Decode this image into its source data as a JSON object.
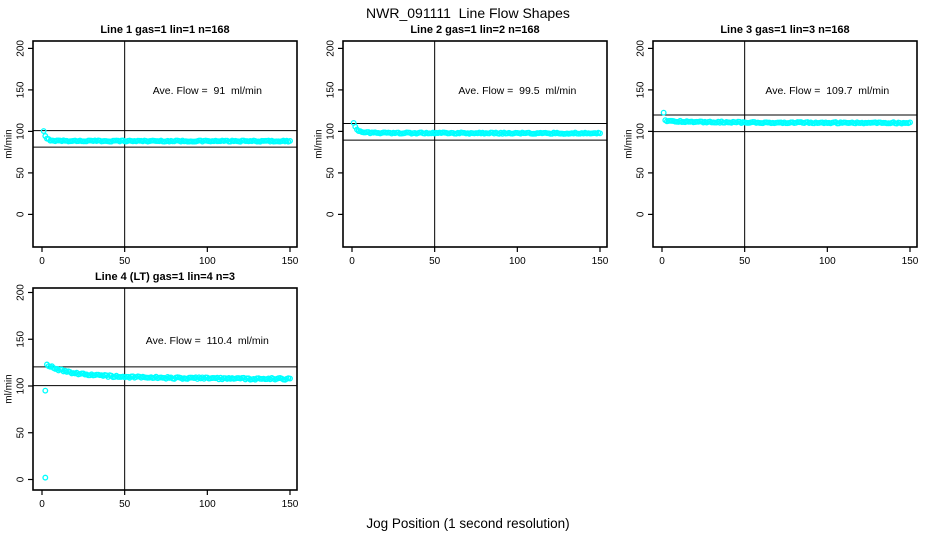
{
  "figure_title": "NWR_091111  Line Flow Shapes",
  "x_axis_label": "Jog Position (1 second resolution)",
  "point_color": "#00ffff",
  "line_color": "#000000",
  "chart_data": [
    {
      "type": "scatter",
      "title": "Line 1 gas=1 lin=1 n=168",
      "annotation": "Ave. Flow =  91  ml/min",
      "ave_flow_ml_min": 91,
      "ylabel": "ml/min",
      "x_ticks": [
        0,
        50,
        100,
        150
      ],
      "y_ticks": [
        0,
        50,
        100,
        150,
        200
      ],
      "xlim": [
        0,
        150
      ],
      "ylim": [
        0,
        200
      ],
      "vline_x": 50,
      "hlines": [
        101,
        81
      ],
      "noise": 0.7,
      "profile_points": [
        [
          1,
          100
        ],
        [
          2,
          94
        ],
        [
          3,
          91
        ],
        [
          5,
          89.5
        ],
        [
          8,
          88.8
        ],
        [
          20,
          88.5
        ],
        [
          50,
          88.5
        ],
        [
          100,
          88.3
        ],
        [
          150,
          88.3
        ]
      ],
      "outliers": []
    },
    {
      "type": "scatter",
      "title": "Line 2 gas=1 lin=2 n=168",
      "annotation": "Ave. Flow =  99.5  ml/min",
      "ave_flow_ml_min": 99.5,
      "ylabel": "ml/min",
      "x_ticks": [
        0,
        50,
        100,
        150
      ],
      "y_ticks": [
        0,
        50,
        100,
        150,
        200
      ],
      "xlim": [
        0,
        150
      ],
      "ylim": [
        0,
        200
      ],
      "vline_x": 50,
      "hlines": [
        109.5,
        89.5
      ],
      "noise": 0.8,
      "profile_points": [
        [
          1,
          110
        ],
        [
          2,
          105
        ],
        [
          3,
          101.5
        ],
        [
          5,
          99.5
        ],
        [
          8,
          98.5
        ],
        [
          20,
          98
        ],
        [
          50,
          98
        ],
        [
          100,
          97.8
        ],
        [
          150,
          97.8
        ]
      ],
      "outliers": []
    },
    {
      "type": "scatter",
      "title": "Line 3 gas=1 lin=3 n=168",
      "annotation": "Ave. Flow =  109.7  ml/min",
      "ave_flow_ml_min": 109.7,
      "ylabel": "ml/min",
      "x_ticks": [
        0,
        50,
        100,
        150
      ],
      "y_ticks": [
        0,
        50,
        100,
        150,
        200
      ],
      "xlim": [
        0,
        150
      ],
      "ylim": [
        0,
        200
      ],
      "vline_x": 50,
      "hlines": [
        119.7,
        99.7
      ],
      "noise": 0.8,
      "profile_points": [
        [
          1,
          122
        ],
        [
          2,
          113
        ],
        [
          5,
          112.5
        ],
        [
          10,
          112
        ],
        [
          20,
          111.5
        ],
        [
          50,
          110.8
        ],
        [
          100,
          110.4
        ],
        [
          150,
          110.2
        ]
      ],
      "outliers": []
    },
    {
      "type": "scatter",
      "title": "Line 4 (LT) gas=1 lin=4 n=3",
      "annotation": "Ave. Flow =  110.4  ml/min",
      "ave_flow_ml_min": 110.4,
      "ylabel": "ml/min",
      "x_ticks": [
        0,
        50,
        100,
        150
      ],
      "y_ticks": [
        0,
        50,
        100,
        150,
        200
      ],
      "xlim": [
        0,
        150
      ],
      "ylim": [
        0,
        200
      ],
      "vline_x": 50,
      "hlines": [
        120.4,
        100.4
      ],
      "noise": 1.0,
      "profile_points": [
        [
          3,
          123
        ],
        [
          5,
          121
        ],
        [
          10,
          117.5
        ],
        [
          20,
          113.5
        ],
        [
          30,
          111.5
        ],
        [
          50,
          109.8
        ],
        [
          80,
          108.5
        ],
        [
          120,
          107.8
        ],
        [
          150,
          107.5
        ]
      ],
      "outliers": [
        [
          2,
          95
        ],
        [
          2,
          2
        ]
      ]
    }
  ]
}
